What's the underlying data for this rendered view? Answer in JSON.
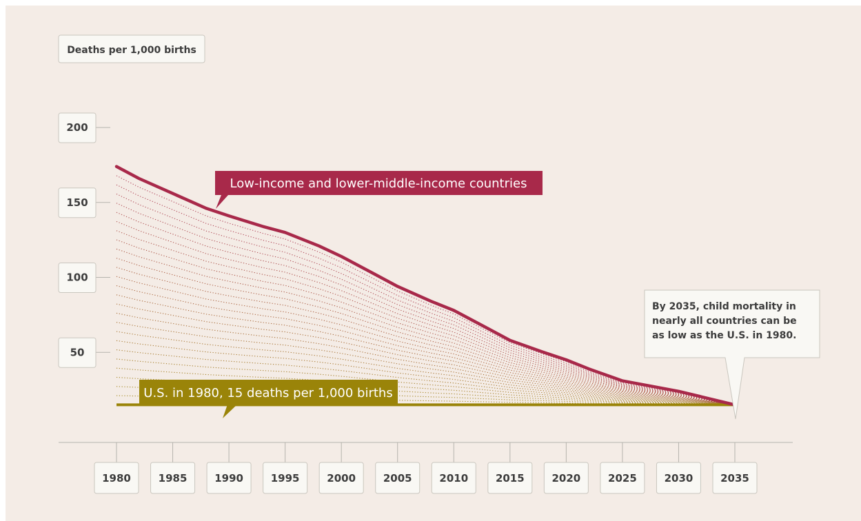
{
  "colors": {
    "background": "#f4ece6",
    "low_income": "#a8294a",
    "us_1980": "#9a8409",
    "box_fill": "#f9f8f4",
    "box_border": "#c9c6be",
    "axis": "#b5b3ad",
    "text": "#3c3c3c"
  },
  "chart_data": {
    "type": "line",
    "ylabel": "Deaths per 1,000 births",
    "y_ticks": [
      "50",
      "100",
      "150",
      "200"
    ],
    "x_ticks": [
      "1980",
      "1985",
      "1990",
      "1995",
      "2000",
      "2005",
      "2010",
      "2015",
      "2020",
      "2025",
      "2030",
      "2035"
    ],
    "xlim": [
      1980,
      2035
    ],
    "ylim": [
      0,
      200
    ],
    "grid": false,
    "fill_style": "dotted lines interpolating between the two series",
    "series": [
      {
        "name": "Low-income and lower-middle-income countries",
        "x": [
          1980,
          1982,
          1985,
          1988,
          1990,
          1993,
          1995,
          1998,
          2000,
          2003,
          2005,
          2008,
          2010,
          2013,
          2015,
          2018,
          2020,
          2022,
          2025,
          2030,
          2035
        ],
        "y": [
          174,
          166,
          156,
          146,
          141,
          134,
          130,
          121,
          114,
          102,
          94,
          84,
          78,
          66,
          58,
          50,
          45,
          39,
          31,
          24,
          15
        ]
      },
      {
        "name": "U.S. in 1980, 15 deaths per 1,000 births",
        "x": [
          1980,
          2035
        ],
        "y": [
          15,
          15
        ]
      }
    ],
    "annotations": [
      {
        "id": "low",
        "text": "Low-income and lower-middle-income countries"
      },
      {
        "id": "us",
        "text": "U.S. in 1980, 15 deaths per 1,000 births"
      },
      {
        "id": "note",
        "lines": [
          "By 2035, child mortality in",
          "nearly all countries can be",
          "as low as the U.S. in 1980."
        ]
      }
    ]
  }
}
